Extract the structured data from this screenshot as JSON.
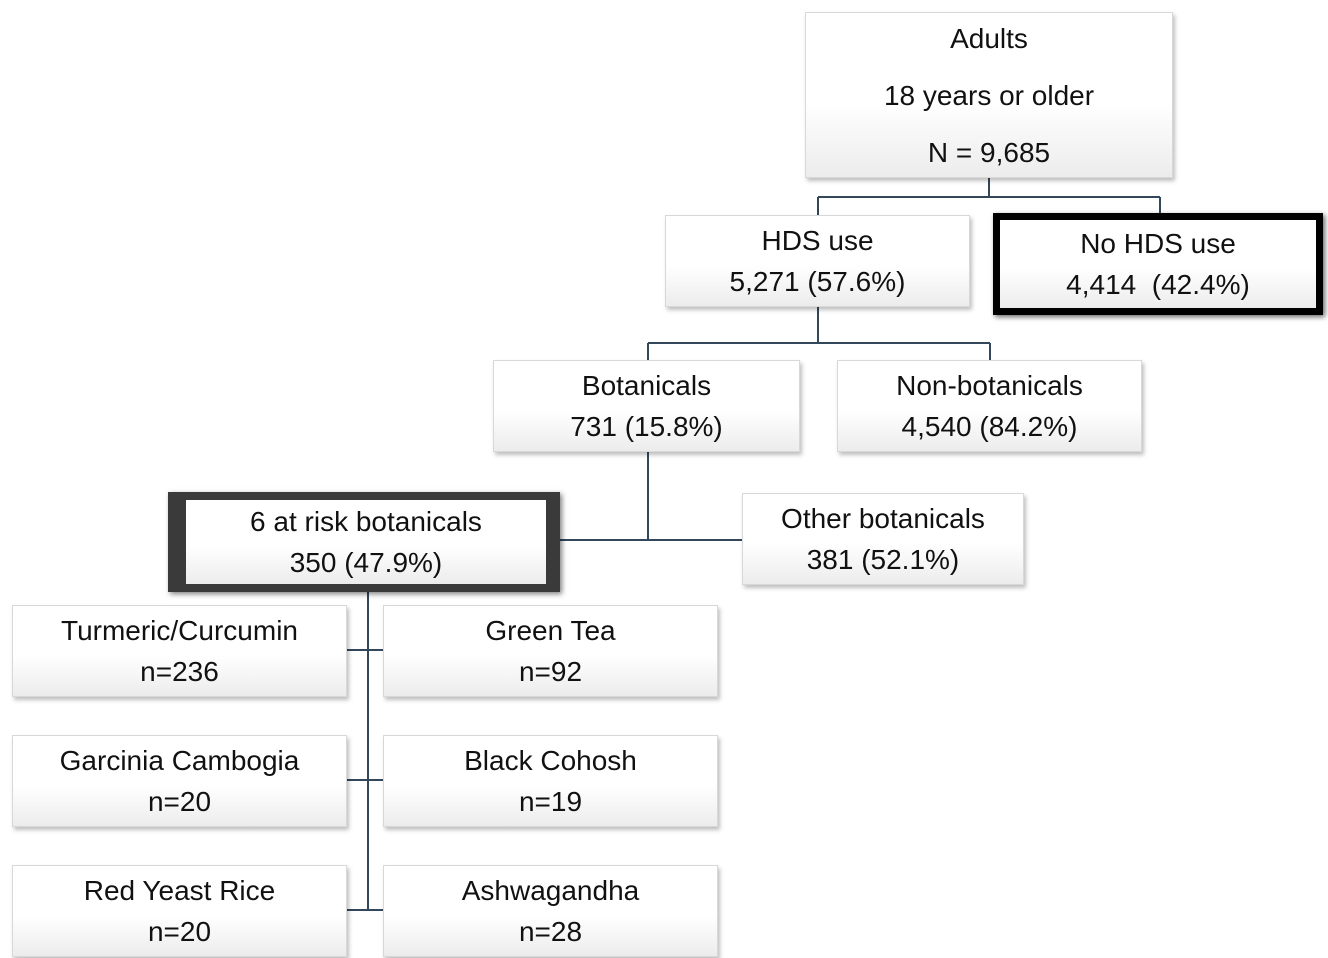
{
  "nodes": [
    {
      "lines": [
        "Adults",
        "18 years or older",
        "N = 9,685"
      ]
    },
    {
      "lines": [
        "HDS use",
        "5,271 (57.6%)"
      ]
    },
    {
      "lines": [
        "No HDS use",
        "4,414  (42.4%)"
      ]
    },
    {
      "lines": [
        "Botanicals",
        "731 (15.8%)"
      ]
    },
    {
      "lines": [
        "Non-botanicals",
        "4,540 (84.2%)"
      ]
    },
    {
      "lines": [
        "6 at risk botanicals",
        "350 (47.9%)"
      ]
    },
    {
      "lines": [
        "Other botanicals",
        "381 (52.1%)"
      ]
    },
    {
      "lines": [
        "Turmeric/Curcumin",
        "n=236"
      ]
    },
    {
      "lines": [
        "Green Tea",
        "n=92"
      ]
    },
    {
      "lines": [
        "Garcinia Cambogia",
        "n=20"
      ]
    },
    {
      "lines": [
        "Black Cohosh",
        "n=19"
      ]
    },
    {
      "lines": [
        "Red Yeast Rice",
        "n=20"
      ]
    },
    {
      "lines": [
        "Ashwagandha",
        "n=28"
      ]
    }
  ]
}
